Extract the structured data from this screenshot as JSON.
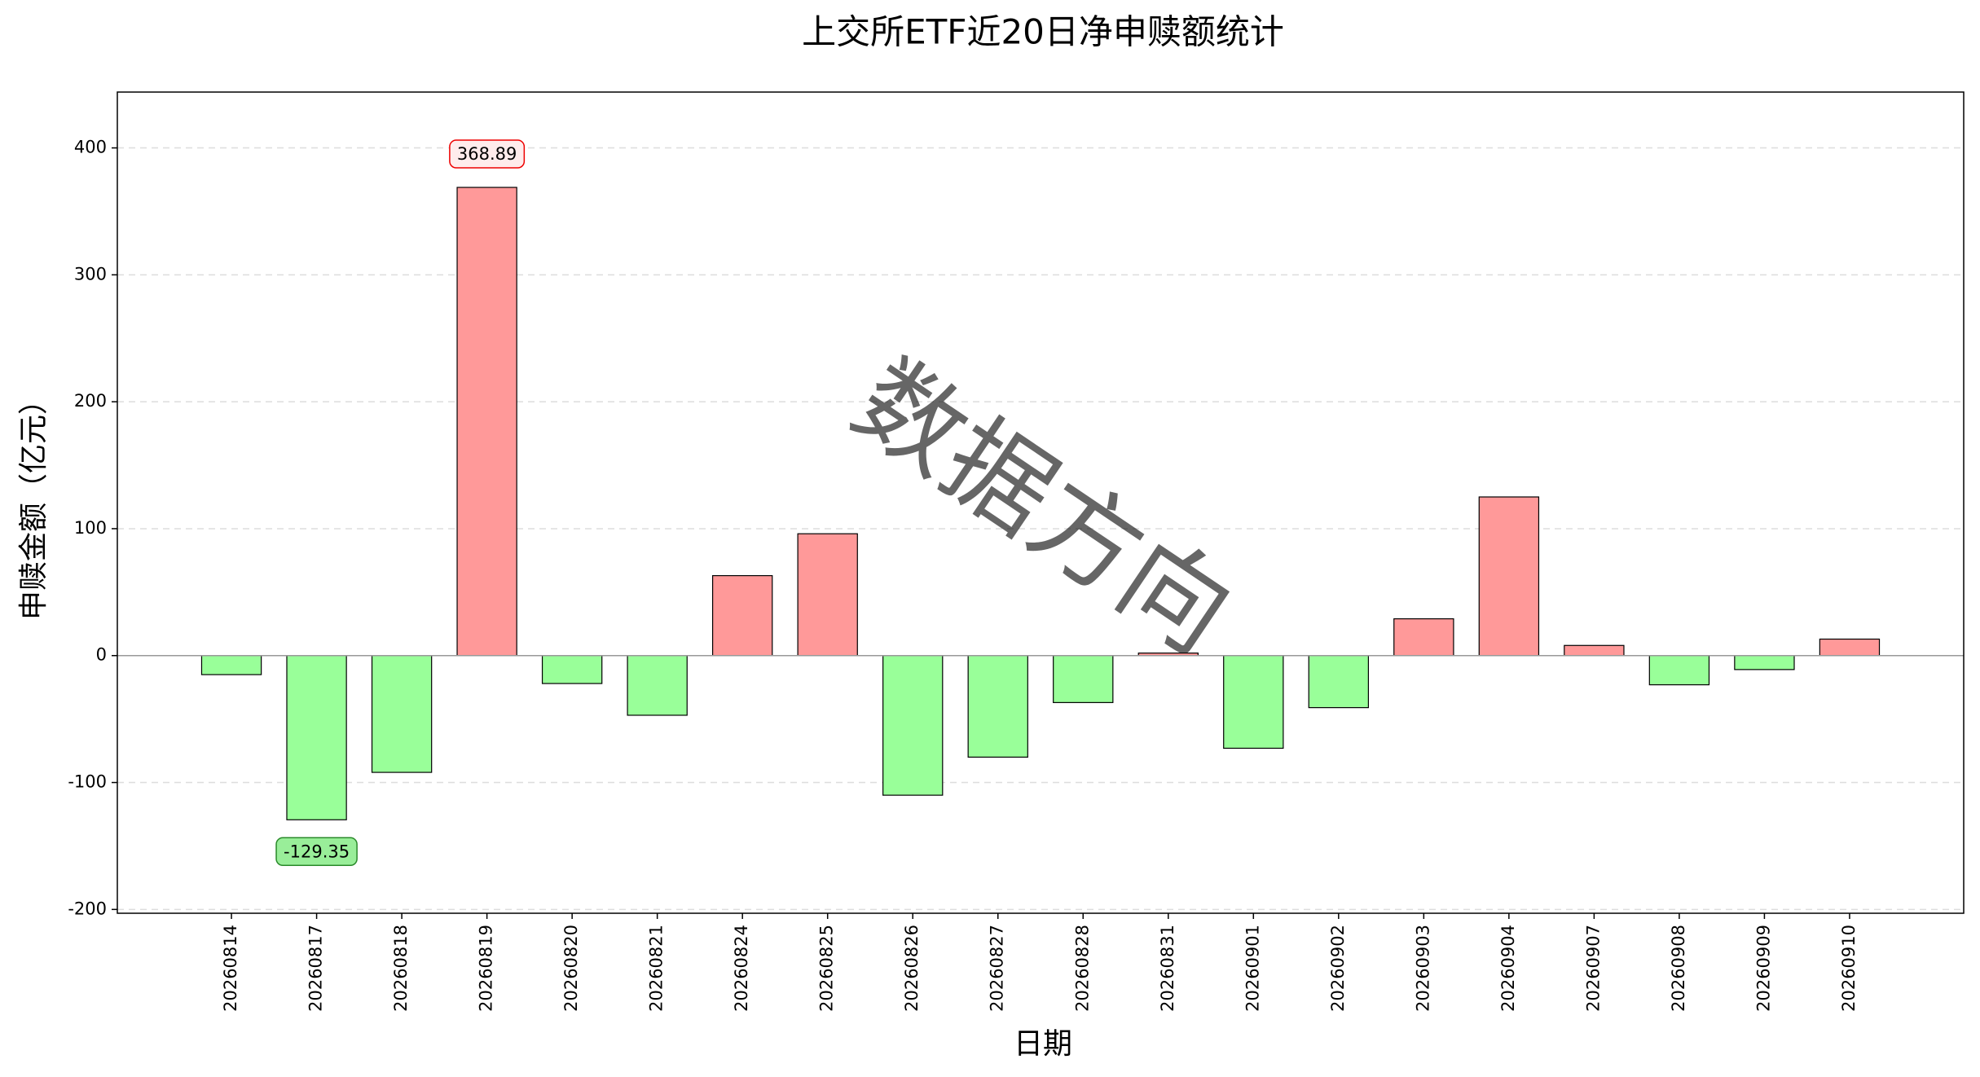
{
  "chart_data": {
    "type": "bar",
    "title": "上交所ETF近20日净申赎额统计",
    "x_label": "日期",
    "y_label": "申赎金额（亿元）",
    "watermark": "数据方向",
    "categories": [
      "20260814",
      "20260817",
      "20260818",
      "20260819",
      "20260820",
      "20260821",
      "20260824",
      "20260825",
      "20260826",
      "20260827",
      "20260828",
      "20260831",
      "20260901",
      "20260902",
      "20260903",
      "20260904",
      "20260907",
      "20260908",
      "20260909",
      "20260910"
    ],
    "values": [
      -15,
      -129.35,
      -92,
      368.89,
      -22,
      -47,
      63,
      96,
      -110,
      -80,
      -37,
      2,
      -73,
      -41,
      29,
      125,
      8,
      -23,
      -11,
      13
    ],
    "value_labels": [
      null,
      "-129.35",
      null,
      null,
      null,
      null,
      null,
      null,
      null,
      null,
      null,
      null,
      null,
      null,
      null,
      null,
      null,
      null,
      null,
      null
    ],
    "positive_color": "#ff9999",
    "negative_color": "#99ff99",
    "ylim": [
      -203,
      444
    ],
    "yticks": [
      -200,
      -100,
      0,
      100,
      200,
      300,
      400
    ],
    "grid": true
  }
}
